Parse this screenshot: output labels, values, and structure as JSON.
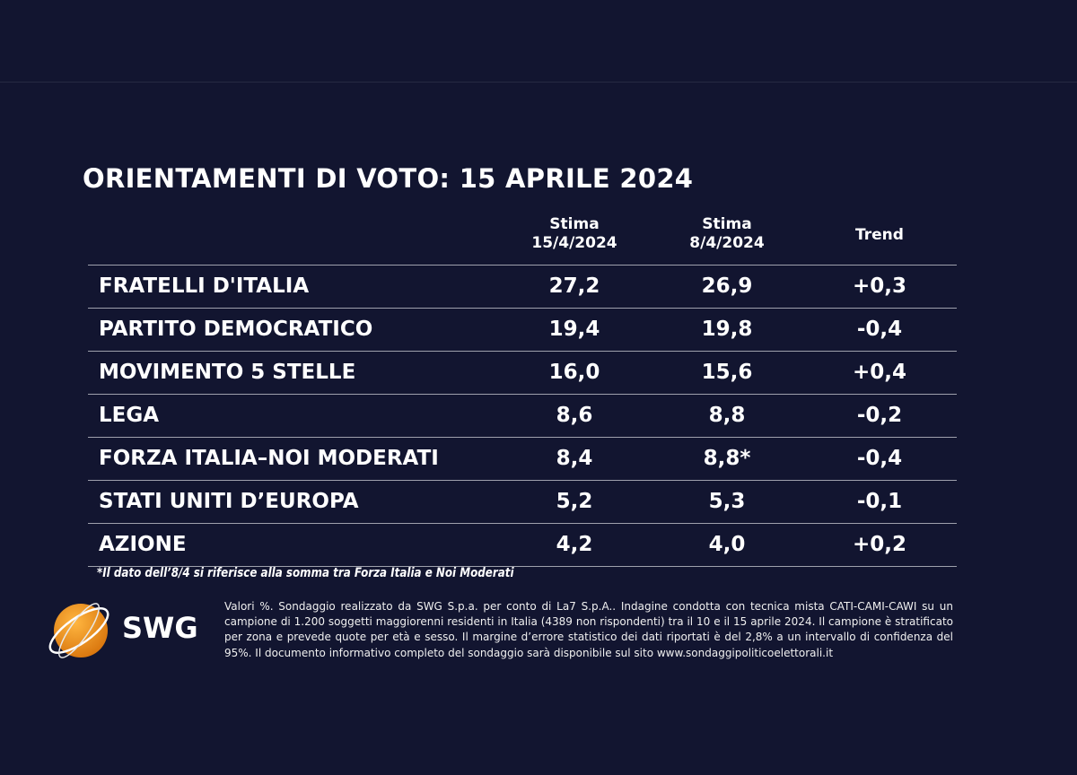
{
  "title": "ORIENTAMENTI DI VOTO: 15 APRILE 2024",
  "chart_data": {
    "type": "table",
    "title": "ORIENTAMENTI DI VOTO: 15 APRILE 2024",
    "columns": [
      {
        "line1": "Stima",
        "line2": "15/4/2024"
      },
      {
        "line1": "Stima",
        "line2": "8/4/2024"
      },
      {
        "line1": "Trend",
        "line2": ""
      }
    ],
    "rows": [
      {
        "party": "FRATELLI D'ITALIA",
        "current": "27,2",
        "previous": "26,9",
        "trend": "+0,3"
      },
      {
        "party": "PARTITO DEMOCRATICO",
        "current": "19,4",
        "previous": "19,8",
        "trend": "-0,4"
      },
      {
        "party": "MOVIMENTO 5 STELLE",
        "current": "16,0",
        "previous": "15,6",
        "trend": "+0,4"
      },
      {
        "party": "LEGA",
        "current": "8,6",
        "previous": "8,8",
        "trend": "-0,2"
      },
      {
        "party": "FORZA ITALIA–NOI MODERATI",
        "current": "8,4",
        "previous": "8,8*",
        "trend": "-0,4"
      },
      {
        "party": "STATI UNITI D’EUROPA",
        "current": "5,2",
        "previous": "5,3",
        "trend": "-0,1"
      },
      {
        "party": "AZIONE",
        "current": "4,2",
        "previous": "4,0",
        "trend": "+0,2"
      }
    ]
  },
  "footnote": "*Il dato dell’8/4 si riferisce alla somma tra Forza Italia e Noi Moderati",
  "logo": {
    "text": "SWG",
    "color": "#f39a1e"
  },
  "notes": "Valori %. Sondaggio realizzato da SWG S.p.a. per conto di La7 S.p.A.. Indagine condotta con tecnica mista CATI-CAMI-CAWI su un campione di 1.200 soggetti maggiorenni residenti in Italia (4389 non rispondenti) tra il 10 e il 15 aprile 2024. Il campione è stratificato per zona e prevede quote per età e sesso. Il margine d’errore statistico dei dati riportati è del 2,8% a un intervallo di confidenza del 95%. Il documento informativo completo del sondaggio sarà disponibile sul sito www.sondaggipoliticoelettorali.it",
  "colors": {
    "background": "#121530",
    "text": "#ffffff",
    "rule": "#9ea0ac"
  }
}
